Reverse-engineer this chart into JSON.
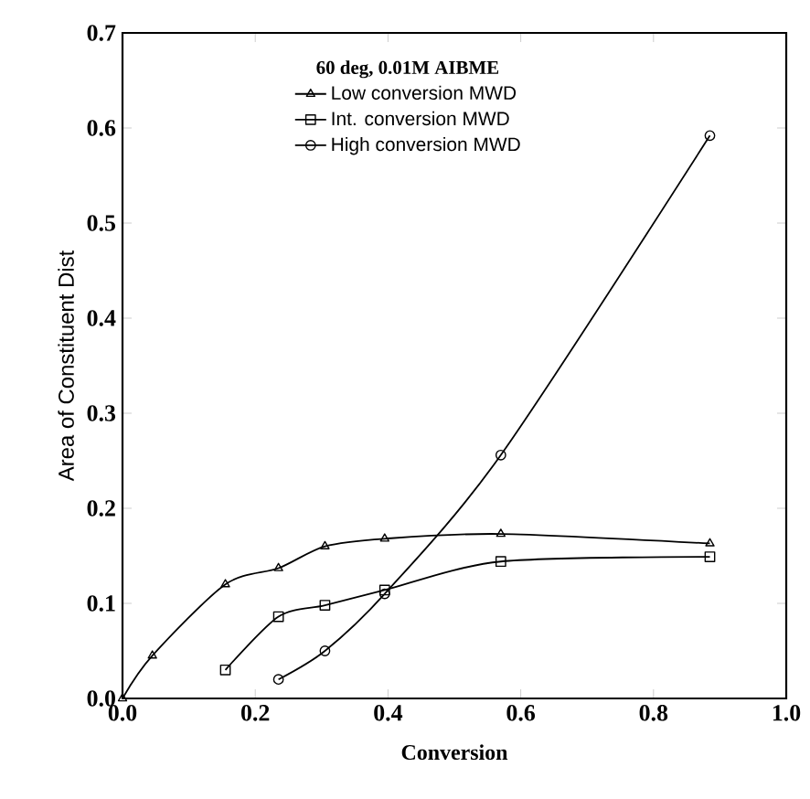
{
  "chart_data": {
    "type": "line",
    "xlabel": "Conversion",
    "ylabel": "Area of Constituent Dist",
    "legend_title": "60 deg, 0.01M AIBME",
    "xlim": [
      0,
      1
    ],
    "ylim": [
      0,
      0.7
    ],
    "xticks": [
      {
        "value": 0,
        "label": "0.0"
      },
      0.2,
      0.4,
      0.6,
      0.8,
      {
        "value": 1,
        "label": "1.0"
      }
    ],
    "yticks": [
      {
        "value": 0,
        "label": "0.0"
      },
      0.1,
      0.2,
      0.3,
      0.4,
      0.5,
      0.6,
      0.7
    ],
    "legend": "top left",
    "grid": false,
    "line_style": "solid",
    "series": [
      {
        "name": "Low conversion MWD",
        "color": "#000000",
        "marker": "triangle",
        "x": [
          0,
          0.045,
          0.155,
          0.235,
          0.305,
          0.395,
          0.57,
          0.885
        ],
        "values": [
          0,
          0.045,
          0.12,
          0.137,
          0.16,
          0.168,
          0.173,
          0.163
        ]
      },
      {
        "name": "Int. conversion MWD",
        "color": "#000000",
        "marker": "square",
        "x": [
          0.155,
          0.235,
          0.305,
          0.395,
          0.57,
          0.885
        ],
        "values": [
          0.03,
          0.086,
          0.098,
          0.114,
          0.144,
          0.149
        ]
      },
      {
        "name": "High conversion MWD",
        "color": "#000000",
        "marker": "circle",
        "x": [
          0.235,
          0.305,
          0.395,
          0.57,
          0.885
        ],
        "values": [
          0.02,
          0.05,
          0.11,
          0.256,
          0.592
        ]
      }
    ]
  }
}
